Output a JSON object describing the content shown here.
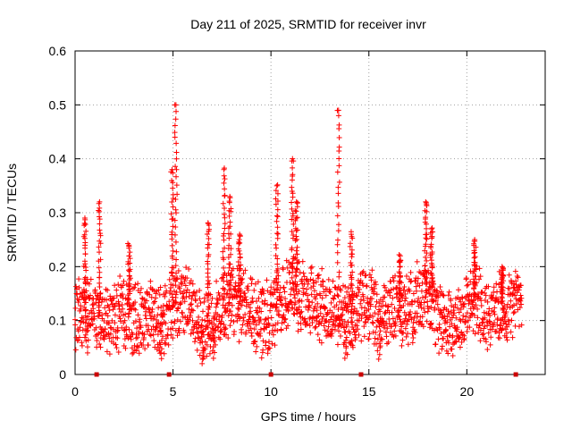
{
  "chart_data": {
    "type": "scatter",
    "title": "Day 211 of 2025, SRMTID for receiver invr",
    "xlabel": "GPS time / hours",
    "ylabel": "SRMTID / TECUs",
    "xlim": [
      0,
      24
    ],
    "ylim": [
      0,
      0.6
    ],
    "x_ticks": [
      0,
      5,
      10,
      15,
      20
    ],
    "x_tick_labels": [
      "0",
      "5",
      "10",
      "15",
      "20"
    ],
    "y_ticks": [
      0,
      0.1,
      0.2,
      0.3,
      0.4,
      0.5,
      0.6
    ],
    "y_tick_labels": [
      "0",
      "0.1",
      "0.2",
      "0.3",
      "0.4",
      "0.5",
      "0.6"
    ],
    "grid": true,
    "marker": "plus",
    "series_color": "#ff0000",
    "gap_marker_color": "#cc0000",
    "gap_markers_x": [
      1.1,
      4.8,
      10.0,
      14.6,
      22.5
    ],
    "x_end": 22.8,
    "baseline": [
      [
        0.0,
        0.11
      ],
      [
        0.5,
        0.12
      ],
      [
        1.0,
        0.11
      ],
      [
        1.5,
        0.1
      ],
      [
        2.0,
        0.11
      ],
      [
        2.5,
        0.12
      ],
      [
        3.0,
        0.1
      ],
      [
        3.5,
        0.1
      ],
      [
        4.0,
        0.11
      ],
      [
        4.5,
        0.09
      ],
      [
        5.0,
        0.13
      ],
      [
        5.5,
        0.14
      ],
      [
        6.0,
        0.12
      ],
      [
        6.5,
        0.09
      ],
      [
        7.0,
        0.1
      ],
      [
        7.5,
        0.12
      ],
      [
        8.0,
        0.14
      ],
      [
        8.5,
        0.13
      ],
      [
        9.0,
        0.11
      ],
      [
        9.5,
        0.1
      ],
      [
        10.0,
        0.11
      ],
      [
        10.5,
        0.13
      ],
      [
        11.0,
        0.16
      ],
      [
        11.5,
        0.15
      ],
      [
        12.0,
        0.14
      ],
      [
        12.5,
        0.13
      ],
      [
        13.0,
        0.12
      ],
      [
        13.5,
        0.11
      ],
      [
        14.0,
        0.09
      ],
      [
        14.5,
        0.13
      ],
      [
        15.0,
        0.13
      ],
      [
        15.5,
        0.1
      ],
      [
        16.0,
        0.12
      ],
      [
        16.5,
        0.12
      ],
      [
        17.0,
        0.12
      ],
      [
        17.5,
        0.14
      ],
      [
        18.0,
        0.16
      ],
      [
        18.5,
        0.11
      ],
      [
        19.0,
        0.1
      ],
      [
        19.5,
        0.1
      ],
      [
        20.0,
        0.12
      ],
      [
        20.5,
        0.14
      ],
      [
        21.0,
        0.11
      ],
      [
        21.5,
        0.12
      ],
      [
        22.0,
        0.12
      ],
      [
        22.5,
        0.14
      ],
      [
        22.8,
        0.15
      ]
    ],
    "spikes": [
      {
        "x": 0.5,
        "peak": 0.29
      },
      {
        "x": 1.25,
        "peak": 0.32
      },
      {
        "x": 2.75,
        "peak": 0.24
      },
      {
        "x": 4.95,
        "peak": 0.38
      },
      {
        "x": 5.15,
        "peak": 0.5
      },
      {
        "x": 6.8,
        "peak": 0.28
      },
      {
        "x": 7.6,
        "peak": 0.38
      },
      {
        "x": 7.9,
        "peak": 0.33
      },
      {
        "x": 8.4,
        "peak": 0.26
      },
      {
        "x": 10.3,
        "peak": 0.35
      },
      {
        "x": 11.1,
        "peak": 0.4
      },
      {
        "x": 11.3,
        "peak": 0.32
      },
      {
        "x": 13.45,
        "peak": 0.49
      },
      {
        "x": 14.1,
        "peak": 0.26
      },
      {
        "x": 16.6,
        "peak": 0.22
      },
      {
        "x": 17.9,
        "peak": 0.32
      },
      {
        "x": 18.2,
        "peak": 0.27
      },
      {
        "x": 20.4,
        "peak": 0.25
      },
      {
        "x": 21.8,
        "peak": 0.2
      }
    ],
    "dips": [
      {
        "x": 0.6,
        "low": 0.04
      },
      {
        "x": 6.5,
        "low": 0.02
      },
      {
        "x": 7.1,
        "low": 0.03
      },
      {
        "x": 13.8,
        "low": 0.03
      },
      {
        "x": 15.6,
        "low": 0.05
      },
      {
        "x": 4.4,
        "low": 0.04
      }
    ]
  }
}
